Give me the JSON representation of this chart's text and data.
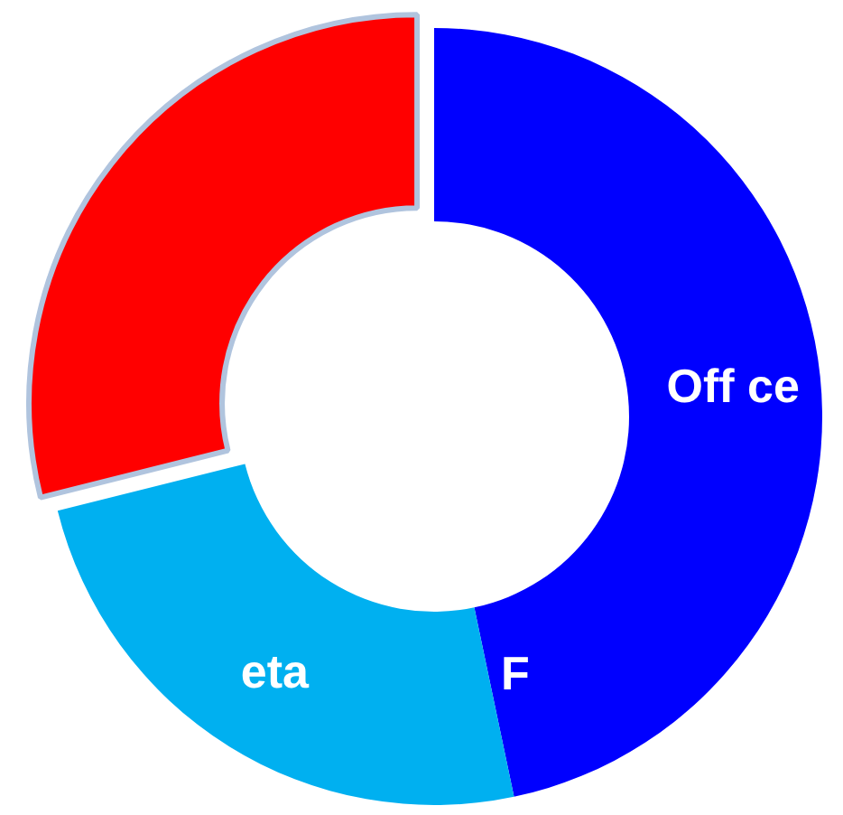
{
  "chart_data": {
    "type": "donut",
    "categories": [
      "Off ce",
      "eta",
      null
    ],
    "values": [
      46.7,
      24.4,
      28.9
    ],
    "colors": [
      "#0000ff",
      "#00b0f0",
      "#ff0000"
    ],
    "annotations": [
      "F"
    ]
  }
}
